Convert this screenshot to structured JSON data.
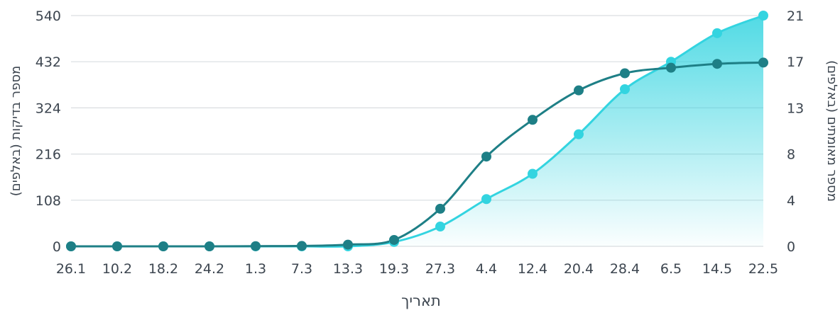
{
  "chart_data": {
    "type": "line",
    "xlabel": "תאריך",
    "ylabel_left": "מספר בדיקות (באלפים)",
    "ylabel_right": "מספר מאומתים (באלפים)",
    "categories": [
      "26.1",
      "10.2",
      "18.2",
      "24.2",
      "1.3",
      "7.3",
      "13.3",
      "19.3",
      "27.3",
      "4.4",
      "12.4",
      "20.4",
      "28.4",
      "6.5",
      "14.5",
      "22.5"
    ],
    "left_ticks": [
      "0",
      "108",
      "216",
      "324",
      "432",
      "540"
    ],
    "right_ticks": [
      "0",
      "4",
      "8",
      "13",
      "17",
      "21"
    ],
    "ylim_left": [
      0,
      540
    ],
    "ylim_right": [
      0,
      21
    ],
    "grid": true,
    "series": [
      {
        "axis": "left",
        "values": [
          0,
          0,
          0,
          0,
          0.5,
          1,
          4,
          15,
          88,
          210,
          296,
          365,
          405,
          418,
          427,
          430
        ],
        "color": "#1e7f86"
      },
      {
        "axis": "right",
        "values": [
          0,
          0,
          0,
          0,
          0,
          0,
          0,
          0.4,
          1.8,
          4.3,
          6.6,
          10.2,
          14.3,
          16.8,
          19.4,
          21
        ],
        "color": "#33d4e0",
        "fill": true
      }
    ]
  }
}
